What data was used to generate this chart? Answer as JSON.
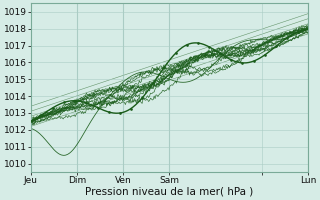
{
  "xlabel": "Pression niveau de la mer( hPa )",
  "xlim": [
    0,
    96
  ],
  "ylim": [
    1009.5,
    1019.5
  ],
  "yticks": [
    1010,
    1011,
    1012,
    1013,
    1014,
    1015,
    1016,
    1017,
    1018,
    1019
  ],
  "xtick_labels": [
    "Jeu",
    "Dim",
    "Ven",
    "Sam",
    "",
    "Lun"
  ],
  "xtick_positions": [
    0,
    16,
    32,
    48,
    80,
    96
  ],
  "bg_color": "#d6ece6",
  "grid_color": "#aaccc4",
  "line_color": "#1a5c1a",
  "fig_bg": "#d6ece6"
}
